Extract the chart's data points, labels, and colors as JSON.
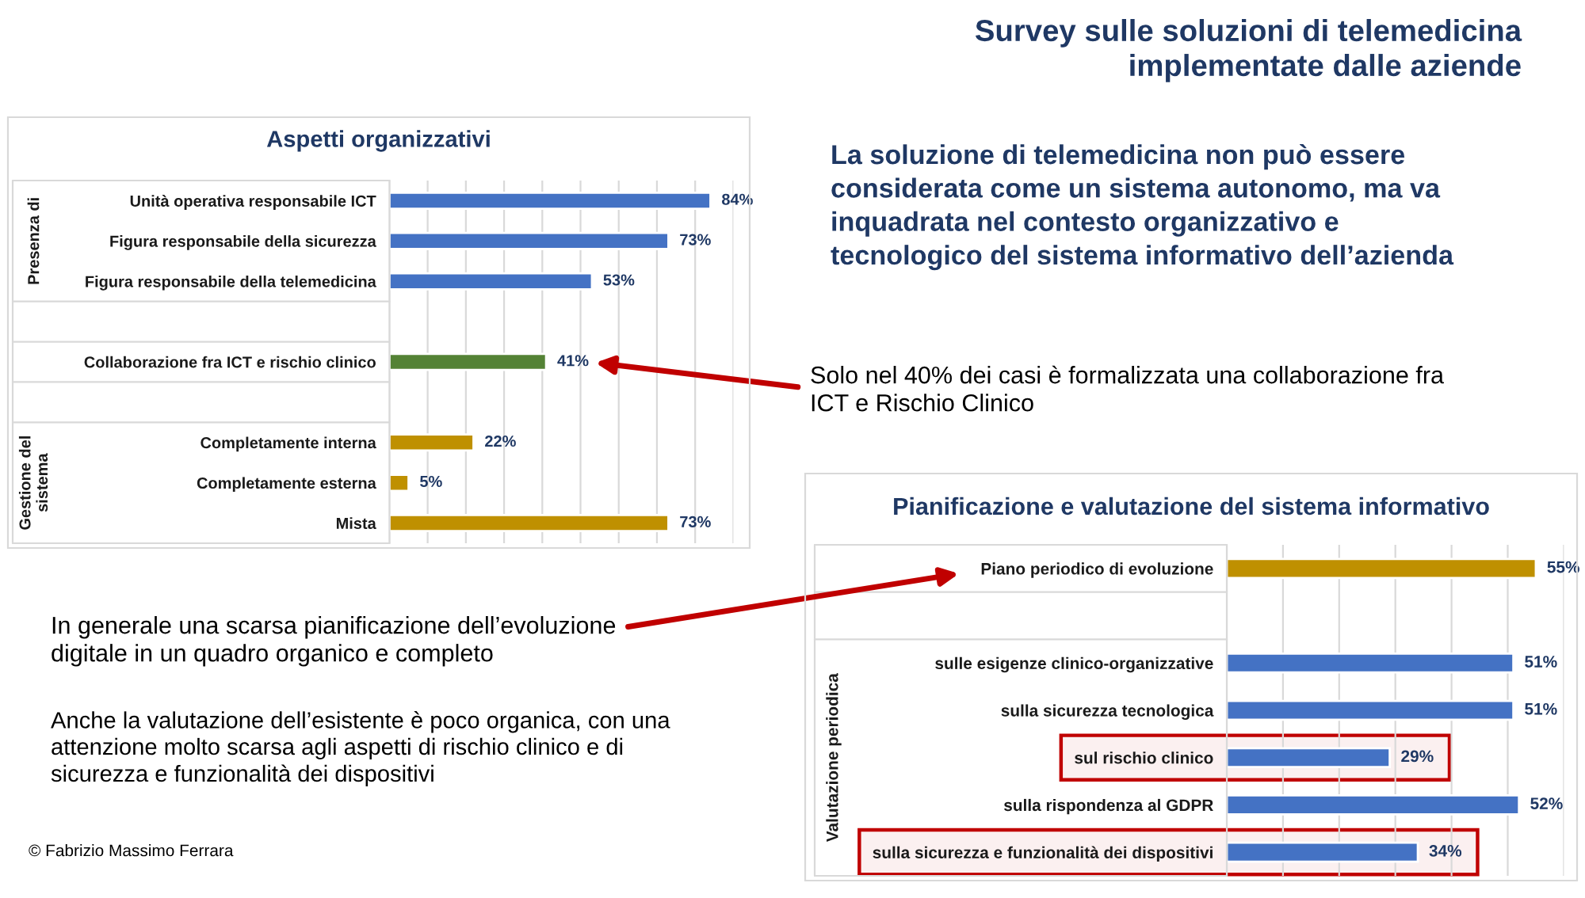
{
  "chart_data": [
    {
      "type": "other",
      "title": "Survey sulle soluzioni di telemedicina implementate dalle aziende",
      "annotations": [
        "La soluzione di telemedicina non può essere considerata come un sistema autonomo, ma va inquadrata nel contesto organizzativo e tecnologico del sistema informativo dell’azienda",
        "Anche la valutazione dell’esistente è poco organica, con una attenzione molto scarsa agli aspetti di rischio clinico e di sicurezza e funzionalità dei dispositivi",
        "© Fabrizio Massimo Ferrara"
      ]
    },
    {
      "type": "bar",
      "orientation": "horizontal",
      "title": "Aspetti organizzativi",
      "categories": [
        "Unità operativa responsabile ICT",
        "Figura responsabile della sicurezza",
        "Figura responsabile della telemedicina",
        null,
        "Collaborazione fra ICT e rischio clinico",
        null,
        "Completamente interna",
        "Completamente esterna",
        "Mista"
      ],
      "values": [
        84,
        73,
        53,
        null,
        41,
        null,
        22,
        5,
        73
      ],
      "colors": [
        "#4472c4",
        "#4472c4",
        "#4472c4",
        null,
        "#548235",
        null,
        "#bf9000",
        "#bf9000",
        "#bf9000"
      ],
      "value_labels": [
        "84%",
        "73%",
        "53%",
        null,
        "41%",
        null,
        "22%",
        "5%",
        "73%"
      ],
      "xlim": [
        0,
        90
      ],
      "xticks": [
        {
          "value": 0,
          "label": null
        },
        {
          "value": 10,
          "label": null
        },
        {
          "value": 20,
          "label": null
        },
        {
          "value": 30,
          "label": null
        },
        {
          "value": 40,
          "label": null
        },
        {
          "value": 50,
          "label": null
        },
        {
          "value": 60,
          "label": null
        },
        {
          "value": 70,
          "label": null
        },
        {
          "value": 80,
          "label": null
        },
        {
          "value": 90,
          "label": null
        }
      ],
      "grid": "x",
      "tick_labels": "y",
      "annotations": [
        "Presenza di",
        "Gestione del sistema",
        "Solo nel 40% dei casi è formalizzata una collaborazione fra ICT e Rischio Clinico"
      ]
    },
    {
      "type": "bar",
      "orientation": "horizontal",
      "title": "Pianificazione e valutazione del sistema informativo",
      "categories": [
        "Piano periodico di evoluzione",
        null,
        "sulle esigenze clinico-organizzative",
        "sulla sicurezza tecnologica",
        "sul rischio clinico",
        "sulla rispondenza al GDPR",
        "sulla sicurezza e funzionalità dei dispositivi"
      ],
      "values": [
        55,
        null,
        51,
        51,
        29,
        52,
        34
      ],
      "colors": [
        "#bf9000",
        null,
        "#4472c4",
        "#4472c4",
        "#4472c4",
        "#4472c4",
        "#4472c4"
      ],
      "value_labels": [
        "55%",
        null,
        "51%",
        "51%",
        "29%",
        "52%",
        "34%"
      ],
      "xlim": [
        0,
        60
      ],
      "xticks": [
        {
          "value": 0,
          "label": null
        },
        {
          "value": 10,
          "label": null
        },
        {
          "value": 20,
          "label": null
        },
        {
          "value": 30,
          "label": null
        },
        {
          "value": 40,
          "label": null
        },
        {
          "value": 50,
          "label": null
        },
        {
          "value": 60,
          "label": null
        }
      ],
      "grid": "x",
      "tick_labels": "y",
      "bands": [
        {
          "axis": "y",
          "from": "sul rischio clinico",
          "to": "sul rischio clinico",
          "color": "#c00000"
        },
        {
          "axis": "y",
          "from": "sulla sicurezza e funzionalità dei dispositivi",
          "to": "sulla sicurezza e funzionalità dei dispositivi",
          "color": "#c00000"
        }
      ],
      "annotations": [
        "Valutazione periodica",
        "In generale una scarsa pianificazione dell’evoluzione digitale in un quadro organico e completo"
      ]
    }
  ]
}
